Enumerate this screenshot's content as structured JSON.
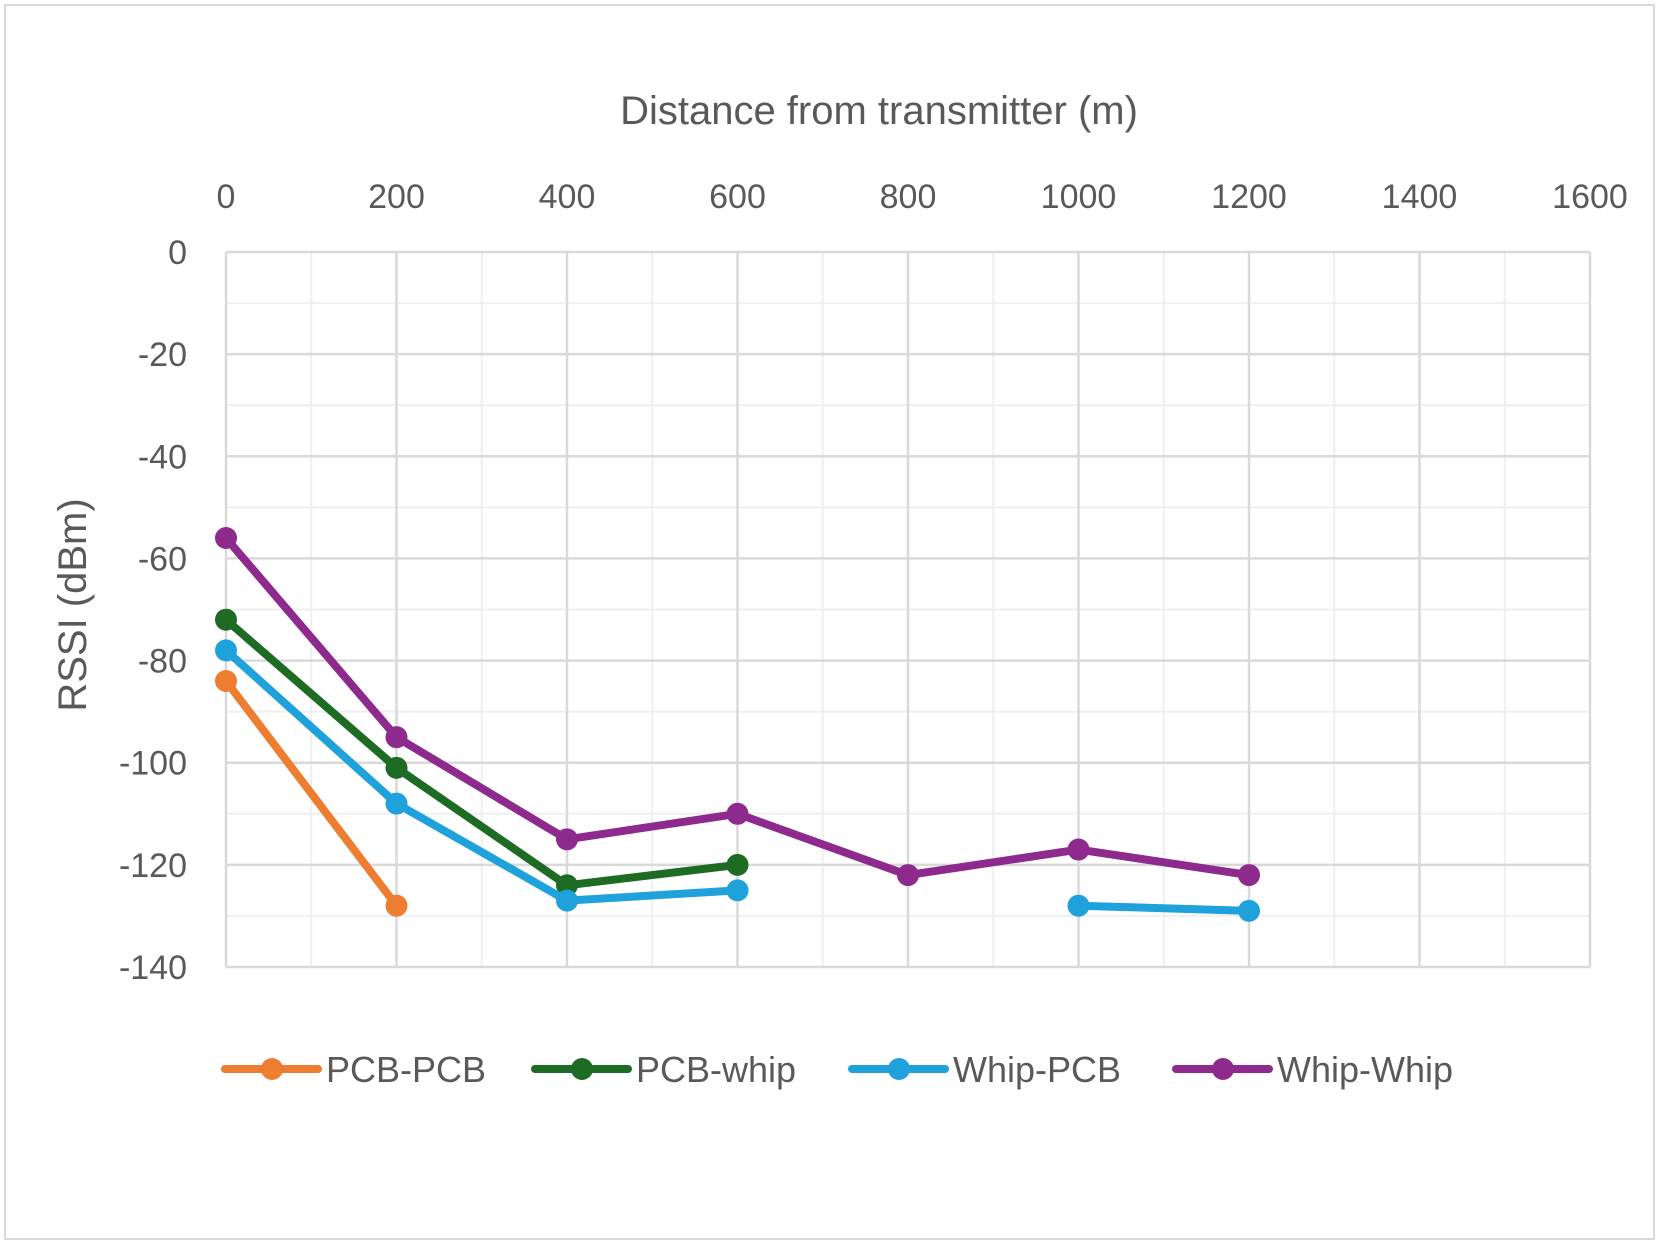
{
  "chart_data": {
    "type": "line",
    "xlabel": "Distance from transmitter (m)",
    "ylabel": "RSSI (dBm)",
    "xlim": [
      0,
      1600
    ],
    "ylim": [
      -140,
      0
    ],
    "x_ticks": [
      0,
      200,
      400,
      600,
      800,
      1000,
      1200,
      1400,
      1600
    ],
    "y_ticks": [
      0,
      -20,
      -40,
      -60,
      -80,
      -100,
      -120,
      -140
    ],
    "x_axis_position": "top",
    "grid": true,
    "legend_position": "bottom",
    "series": [
      {
        "name": "PCB-PCB",
        "color": "#ed7d31",
        "points": [
          [
            0,
            -84
          ],
          [
            200,
            -128
          ]
        ]
      },
      {
        "name": "PCB-whip",
        "color": "#1e6b24",
        "points": [
          [
            0,
            -72
          ],
          [
            200,
            -101
          ],
          [
            400,
            -124
          ],
          [
            600,
            -120
          ]
        ]
      },
      {
        "name": "Whip-PCB",
        "color": "#1fa2dc",
        "points": [
          [
            0,
            -78
          ],
          [
            200,
            -108
          ],
          [
            400,
            -127
          ],
          [
            600,
            -125
          ],
          [
            1000,
            -128
          ],
          [
            1200,
            -129
          ]
        ],
        "segments": [
          [
            0,
            3
          ],
          [
            4,
            5
          ]
        ]
      },
      {
        "name": "Whip-Whip",
        "color": "#8e2a8e",
        "points": [
          [
            0,
            -56
          ],
          [
            200,
            -95
          ],
          [
            400,
            -115
          ],
          [
            600,
            -110
          ],
          [
            800,
            -122
          ],
          [
            1000,
            -117
          ],
          [
            1200,
            -122
          ]
        ]
      }
    ]
  }
}
